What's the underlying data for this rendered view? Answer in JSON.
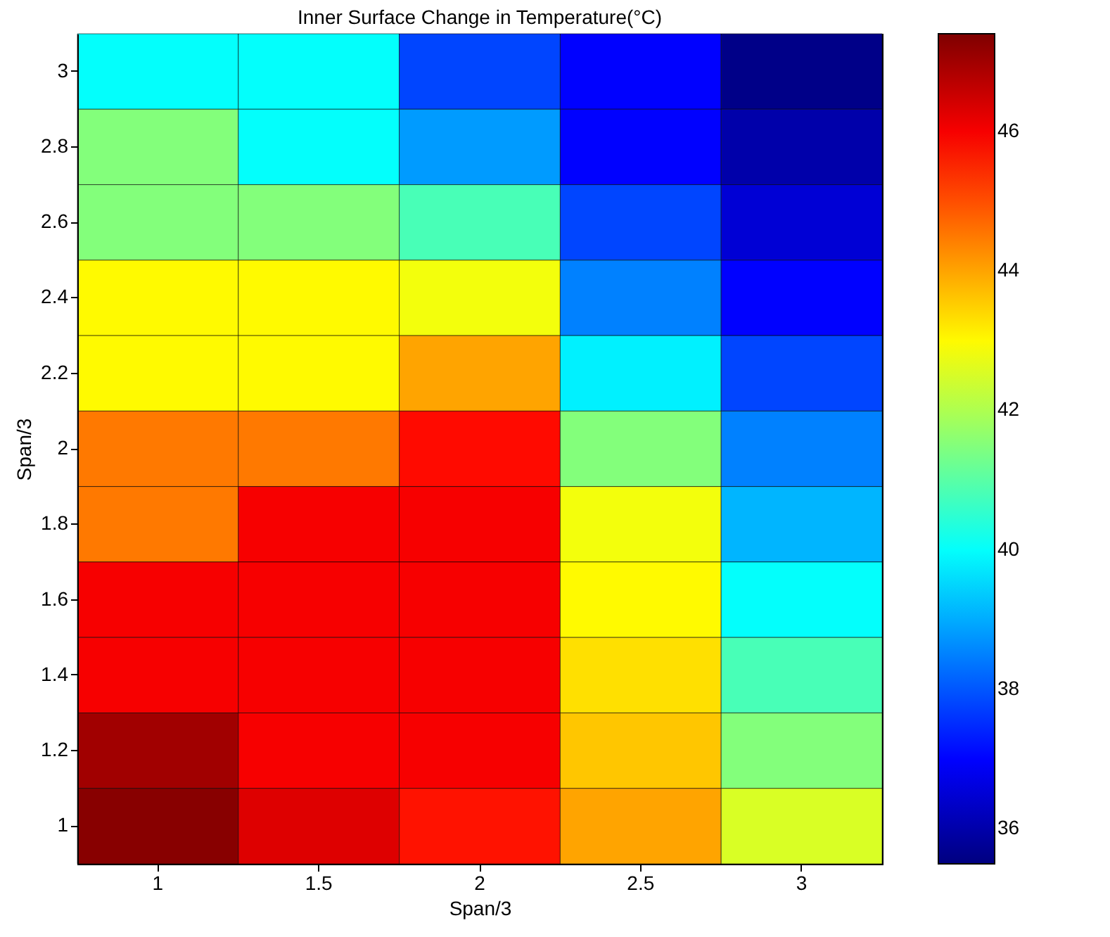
{
  "chart_data": {
    "type": "heatmap",
    "title": "Inner Surface Change in Temperature(°C)",
    "xlabel": "Span/3",
    "ylabel": "Span/3",
    "categories": [
      "1",
      "1.5",
      "2",
      "2.5",
      "3"
    ],
    "y_categories": [
      "3",
      "2.8",
      "2.6",
      "2.4",
      "2.2",
      "2",
      "1.8",
      "1.6",
      "1.4",
      "1.2",
      "1"
    ],
    "cells": [
      [
        40,
        40,
        37.8,
        37,
        35.6
      ],
      [
        41.5,
        40,
        38.8,
        37,
        36
      ],
      [
        41.5,
        41.5,
        40.8,
        37.8,
        36.5
      ],
      [
        43,
        43,
        42.8,
        38.5,
        37
      ],
      [
        43,
        43,
        44,
        39.8,
        37.8
      ],
      [
        44.5,
        44.5,
        45.8,
        41.5,
        38.5
      ],
      [
        44.5,
        46,
        46,
        42.8,
        39.1
      ],
      [
        46,
        46,
        46,
        43,
        40
      ],
      [
        46,
        46,
        46,
        43.3,
        40.8
      ],
      [
        47,
        46,
        46,
        43.6,
        41.5
      ],
      [
        47.3,
        46.3,
        45.7,
        44,
        42.5
      ]
    ],
    "clim": [
      35.5,
      47.4
    ],
    "cticks": [
      36,
      38,
      40,
      42,
      44,
      46
    ]
  }
}
